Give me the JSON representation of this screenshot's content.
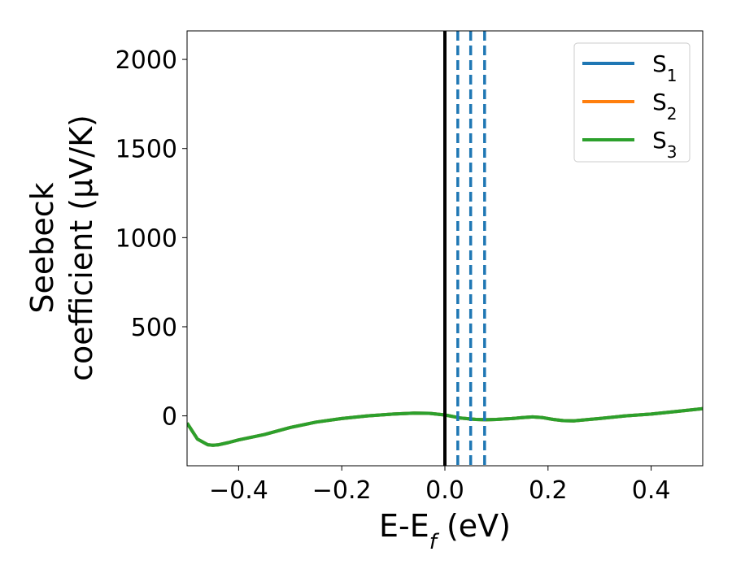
{
  "chart_data": {
    "type": "line",
    "title": "",
    "xlabel": "E-E",
    "xlabel_sub": "f",
    "xlabel_suffix": " (eV)",
    "ylabel_line1": "Seebeck",
    "ylabel_line2": "coefficient  (μV/K)",
    "xlim": [
      -0.5,
      0.5
    ],
    "ylim": [
      -280,
      2160
    ],
    "xticks": [
      -0.4,
      -0.2,
      0.0,
      0.2,
      0.4
    ],
    "xtick_labels": [
      "−0.4",
      "−0.2",
      "0.0",
      "0.2",
      "0.4"
    ],
    "yticks": [
      0,
      500,
      1000,
      1500,
      2000
    ],
    "ytick_labels": [
      "0",
      "500",
      "1000",
      "1500",
      "2000"
    ],
    "grid": false,
    "legend_position": "top-right",
    "x": [
      -0.5,
      -0.48,
      -0.46,
      -0.45,
      -0.44,
      -0.42,
      -0.4,
      -0.35,
      -0.3,
      -0.25,
      -0.2,
      -0.15,
      -0.1,
      -0.06,
      -0.03,
      0.0,
      0.03,
      0.06,
      0.08,
      0.1,
      0.13,
      0.15,
      0.17,
      0.19,
      0.21,
      0.23,
      0.25,
      0.28,
      0.3,
      0.35,
      0.4,
      0.45,
      0.5
    ],
    "series": [
      {
        "name": "S",
        "subscript": "1",
        "color": "#1f77b4",
        "values": [
          -40,
          -130,
          -162,
          -165,
          -163,
          -150,
          -135,
          -105,
          -65,
          -35,
          -15,
          0,
          10,
          15,
          14,
          5,
          -12,
          -20,
          -22,
          -20,
          -15,
          -10,
          -6,
          -10,
          -20,
          -27,
          -28,
          -20,
          -15,
          0,
          10,
          25,
          40
        ]
      },
      {
        "name": "S",
        "subscript": "2",
        "color": "#ff7f0e",
        "values": [
          -40,
          -130,
          -162,
          -165,
          -163,
          -150,
          -135,
          -105,
          -65,
          -35,
          -15,
          0,
          10,
          15,
          14,
          5,
          -12,
          -20,
          -22,
          -20,
          -15,
          -10,
          -6,
          -10,
          -20,
          -27,
          -28,
          -20,
          -15,
          0,
          10,
          25,
          40
        ]
      },
      {
        "name": "S",
        "subscript": "3",
        "color": "#2ca02c",
        "values": [
          -40,
          -130,
          -162,
          -165,
          -163,
          -150,
          -135,
          -105,
          -65,
          -35,
          -15,
          0,
          10,
          15,
          14,
          5,
          -12,
          -20,
          -22,
          -20,
          -15,
          -10,
          -6,
          -10,
          -20,
          -27,
          -28,
          -20,
          -15,
          0,
          10,
          25,
          40
        ]
      }
    ],
    "vlines": [
      {
        "x": 0.0,
        "style": "solid",
        "color": "#000000"
      },
      {
        "x": 0.025,
        "style": "dashed",
        "color": "#1f77b4"
      },
      {
        "x": 0.05,
        "style": "dashed",
        "color": "#1f77b4"
      },
      {
        "x": 0.077,
        "style": "dashed",
        "color": "#1f77b4"
      }
    ]
  }
}
